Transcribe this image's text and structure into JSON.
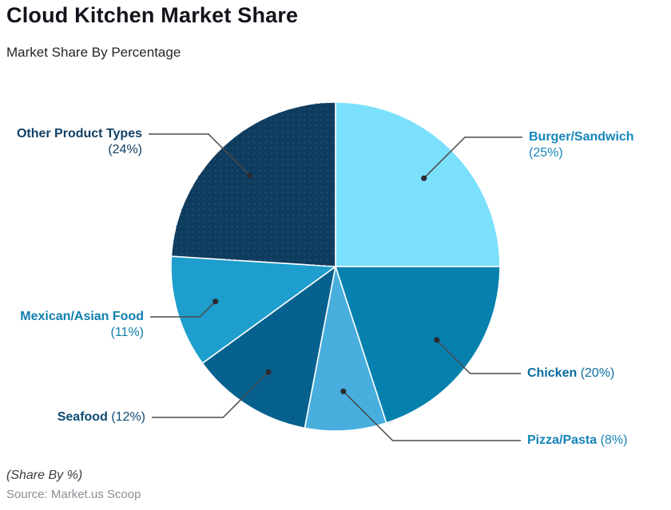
{
  "header": {
    "title": "Cloud Kitchen Market Share",
    "subtitle": "Market Share By Percentage"
  },
  "footer": {
    "note": "(Share By %)",
    "source": "Source: Market.us Scoop"
  },
  "chart_data": {
    "type": "pie",
    "title": "Cloud Kitchen Market Share",
    "subtitle": "Market Share By Percentage",
    "unit": "percent",
    "start_angle_deg": 0,
    "direction": "clockwise",
    "legend_position": "callout-labels",
    "leader_line_color": "#4a4a4a",
    "anchor_dot_color": "#2a2a33",
    "slice_divider_color": "#ffffff",
    "slices": [
      {
        "label": "Burger/Sandwich",
        "value": 25,
        "pct_label": "(25%)",
        "color": "#7be0fc",
        "label_color": "#1586bb"
      },
      {
        "label": "Chicken",
        "value": 20,
        "pct_label": "(20%)",
        "color": "#0681ae",
        "label_color": "#0a6d9c"
      },
      {
        "label": "Pizza/Pasta",
        "value": 8,
        "pct_label": "(8%)",
        "color": "#47aedd",
        "label_color": "#1583b8"
      },
      {
        "label": "Seafood",
        "value": 12,
        "pct_label": "(12%)",
        "color": "#06618e",
        "label_color": "#0d4a73"
      },
      {
        "label": "Mexican/Asian Food",
        "value": 11,
        "pct_label": "(11%)",
        "color": "#1d9ecd",
        "label_color": "#0f7fad"
      },
      {
        "label": "Other Product Types",
        "value": 24,
        "pct_label": "(24%)",
        "color": "#0e3c5f",
        "label_color": "#123f63",
        "pattern": "dots",
        "pattern_dot_color": "#2c577d"
      }
    ]
  }
}
